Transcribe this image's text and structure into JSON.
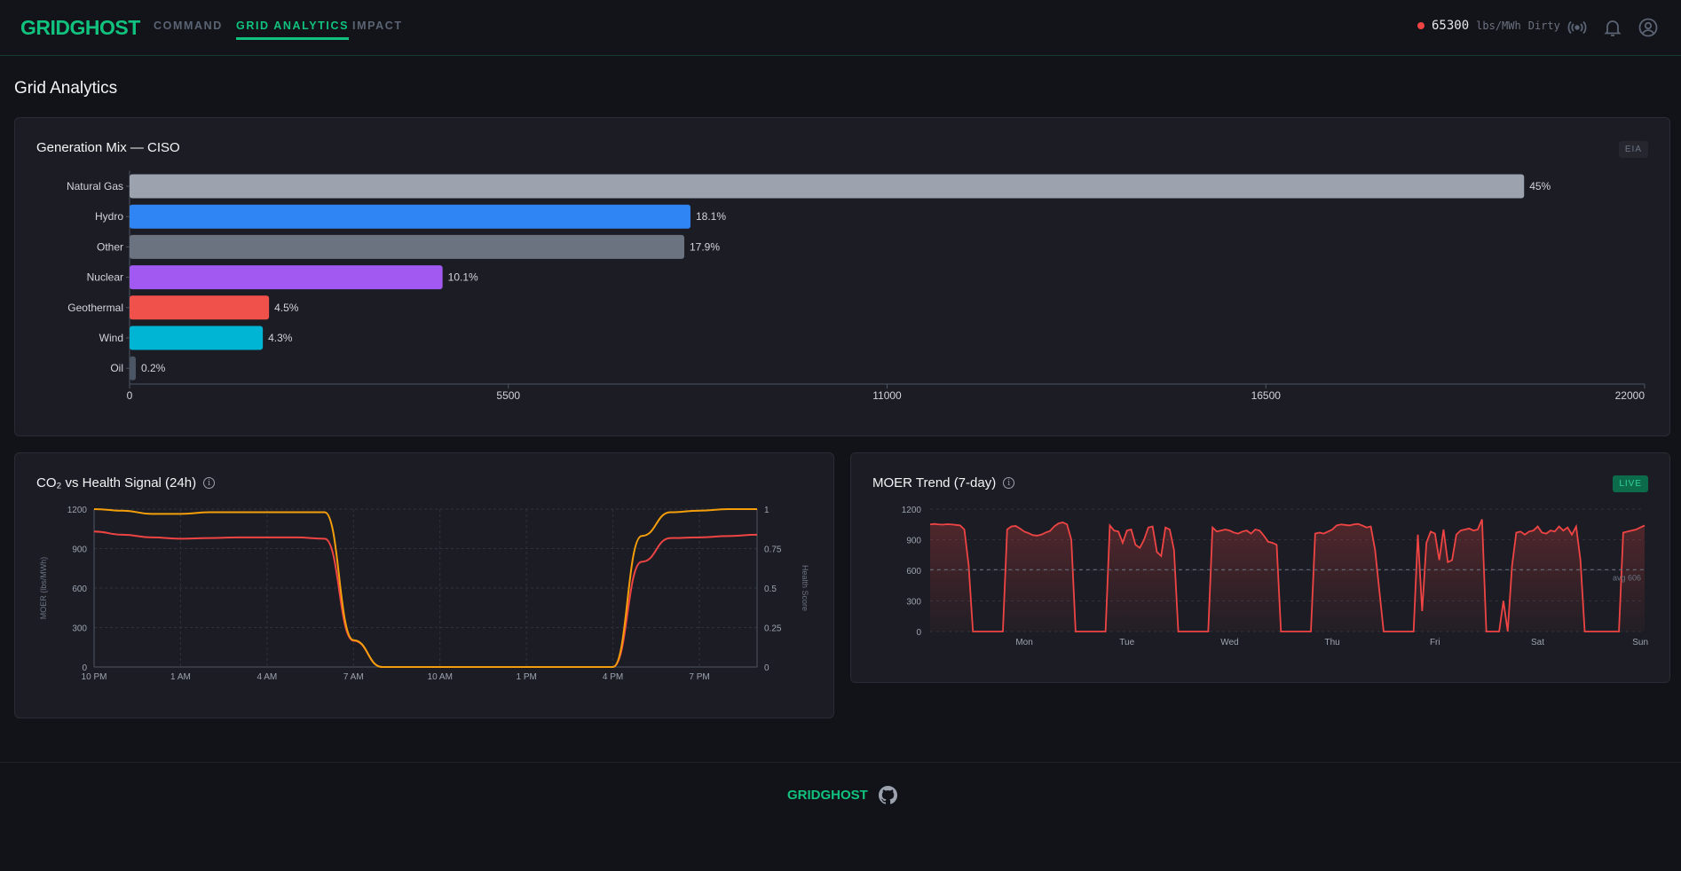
{
  "header": {
    "logo": "GRIDGHOST",
    "nav": [
      {
        "label": "COMMAND"
      },
      {
        "label": "GRID ANALYTICS",
        "active": true
      },
      {
        "label": "IMPACT"
      }
    ],
    "status": {
      "value": "65300",
      "unit": "lbs/MWh",
      "level": "Dirty",
      "color": "#ef4444"
    },
    "icons": [
      "broadcast-icon",
      "bell-icon",
      "user-circle-icon"
    ]
  },
  "page": {
    "title": "Grid Analytics"
  },
  "generation": {
    "title": "Generation Mix — CISO",
    "badge": "EIA"
  },
  "co2": {
    "title": "CO₂ vs Health Signal (24h)"
  },
  "moer": {
    "title": "MOER Trend (7-day)",
    "badge": "LIVE"
  },
  "footer": {
    "logo": "GRIDGHOST"
  },
  "chart_data": [
    {
      "type": "bar",
      "orientation": "horizontal",
      "title": "Generation Mix — CISO",
      "categories": [
        "Natural Gas",
        "Hydro",
        "Other",
        "Nuclear",
        "Geothermal",
        "Wind",
        "Oil"
      ],
      "values": [
        20250,
        8145,
        8055,
        4545,
        2025,
        1935,
        90
      ],
      "labels": [
        "45%",
        "18.1%",
        "17.9%",
        "10.1%",
        "4.5%",
        "4.3%",
        "0.2%"
      ],
      "colors": [
        "#9ca3af",
        "#3085f4",
        "#6b7280",
        "#a259f1",
        "#f0514b",
        "#00b4d3",
        "#4b5563"
      ],
      "xlim": [
        0,
        22000
      ],
      "xticks": [
        "0",
        "5500",
        "11000",
        "16500",
        "22000"
      ]
    },
    {
      "type": "line",
      "title": "CO₂ vs Health Signal (24h)",
      "xticks": [
        "10 PM",
        "1 AM",
        "4 AM",
        "7 AM",
        "10 AM",
        "1 PM",
        "4 PM",
        "7 PM"
      ],
      "ylabel": "MOER (lbs/MWh)",
      "y2label": "Health Score",
      "yticks": [
        "0",
        "300",
        "600",
        "900",
        "1200"
      ],
      "y2ticks": [
        "0",
        "0.25",
        "0.5",
        "0.75",
        "1"
      ],
      "ylim": [
        0,
        1200
      ],
      "y2lim": [
        0,
        1
      ],
      "series": [
        {
          "name": "MOER",
          "color": "#ef4444",
          "axis": "left",
          "values": [
            1030,
            1005,
            985,
            975,
            980,
            985,
            985,
            985,
            975,
            200,
            0,
            0,
            0,
            0,
            0,
            0,
            0,
            0,
            0,
            800,
            980,
            985,
            995,
            1005
          ]
        },
        {
          "name": "Health",
          "color": "#f59e0b",
          "axis": "right",
          "values": [
            1,
            0.99,
            0.97,
            0.97,
            0.98,
            0.98,
            0.98,
            0.98,
            0.98,
            0.17,
            0,
            0,
            0,
            0,
            0,
            0,
            0,
            0,
            0,
            0.83,
            0.98,
            0.99,
            1,
            1
          ]
        }
      ]
    },
    {
      "type": "area",
      "title": "MOER Trend (7-day)",
      "xticks": [
        "Mon",
        "Tue",
        "Wed",
        "Thu",
        "Fri",
        "Sat",
        "Sun"
      ],
      "yticks": [
        "0",
        "300",
        "600",
        "900",
        "1200"
      ],
      "ylim": [
        0,
        1200
      ],
      "avg": 606,
      "avg_label": "avg 606",
      "color": "#ef4444",
      "values": [
        1050,
        1055,
        1050,
        1048,
        1052,
        1050,
        1045,
        1040,
        1000,
        650,
        0,
        0,
        0,
        0,
        0,
        0,
        0,
        0,
        1000,
        1030,
        1035,
        1010,
        980,
        965,
        945,
        940,
        950,
        970,
        985,
        1030,
        1060,
        1070,
        1050,
        900,
        0,
        0,
        0,
        0,
        0,
        0,
        0,
        0,
        1040,
        990,
        980,
        870,
        990,
        1000,
        850,
        820,
        900,
        1020,
        1030,
        780,
        740,
        1020,
        1000,
        800,
        0,
        0,
        0,
        0,
        0,
        0,
        0,
        0,
        1020,
        980,
        990,
        1000,
        990,
        970,
        960,
        980,
        990,
        960,
        1000,
        990,
        940,
        880,
        870,
        850,
        0,
        0,
        0,
        0,
        0,
        0,
        0,
        0,
        960,
        970,
        960,
        980,
        1000,
        1040,
        1050,
        1045,
        1040,
        1050,
        1055,
        1040,
        1020,
        1030,
        800,
        400,
        0,
        0,
        0,
        0,
        0,
        0,
        0,
        0,
        950,
        200,
        870,
        980,
        960,
        700,
        1000,
        680,
        700,
        950,
        990,
        1000,
        1010,
        990,
        1000,
        1100,
        0,
        0,
        0,
        0,
        300,
        0,
        640,
        970,
        980,
        950,
        980,
        990,
        1030,
        970,
        960,
        990,
        980,
        1030,
        990,
        1020,
        950,
        1030,
        700,
        0,
        0,
        0,
        0,
        0,
        0,
        0,
        0,
        0,
        970,
        980,
        990,
        1000,
        1020,
        1040
      ]
    }
  ]
}
